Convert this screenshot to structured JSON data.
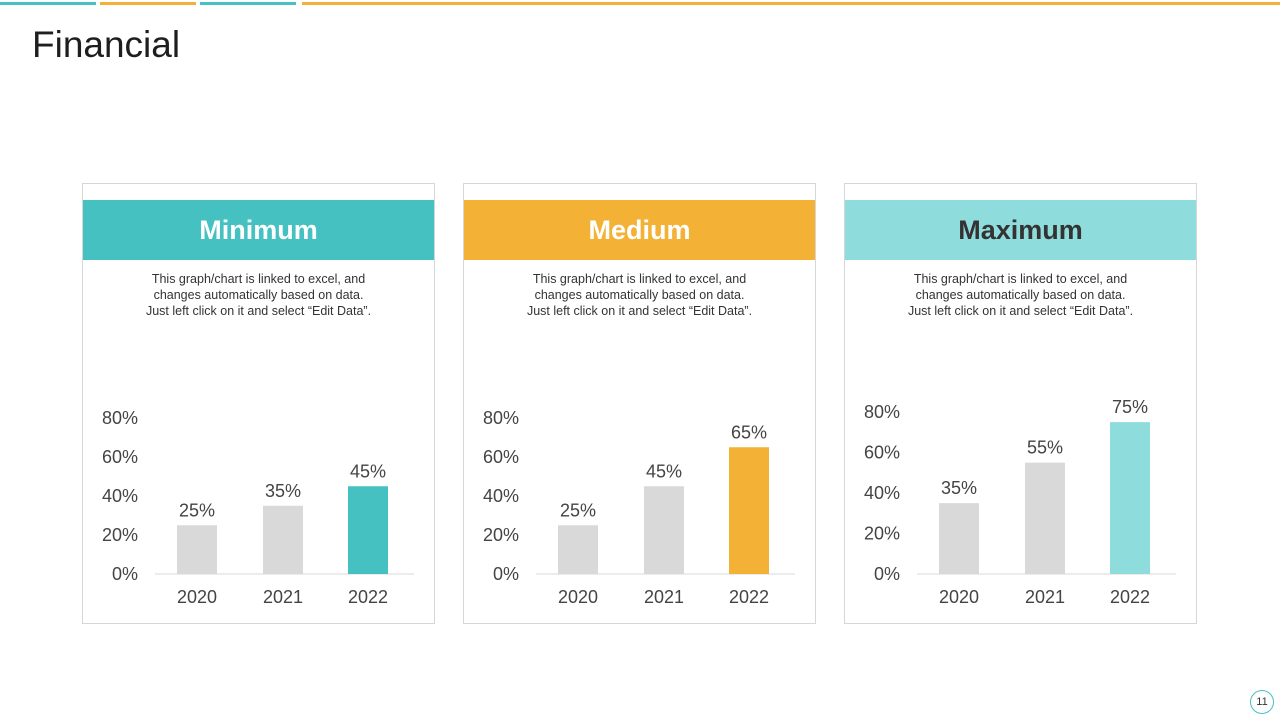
{
  "slide": {
    "title": "Financial",
    "page_number": "11",
    "accent_colors": [
      "#45c1c1",
      "#f3b136",
      "#8fdcdc"
    ]
  },
  "cards": [
    {
      "heading": "Minimum",
      "header_color": "#45c1c1",
      "heading_color": "#ffffff",
      "description": "This graph/chart is linked to excel, and changes automatically based on data. Just left click on it and select “Edit Data”."
    },
    {
      "heading": "Medium",
      "header_color": "#f3b136",
      "heading_color": "#ffffff",
      "description": "This graph/chart is linked to excel, and changes automatically based on data. Just left click on it and select “Edit Data”."
    },
    {
      "heading": "Maximum",
      "header_color": "#8fdcdc",
      "heading_color": "#333333",
      "description": "This graph/chart is linked to excel, and changes automatically based on data. Just left click on it and select “Edit Data”."
    }
  ],
  "chart_data": [
    {
      "type": "bar",
      "title": "",
      "categories": [
        "2020",
        "2021",
        "2022"
      ],
      "values": [
        25,
        35,
        45
      ],
      "value_labels": [
        "25%",
        "35%",
        "45%"
      ],
      "ylim": [
        0,
        80
      ],
      "yticks": [
        "0%",
        "20%",
        "40%",
        "60%",
        "80%"
      ],
      "bar_colors": [
        "#d9d9d9",
        "#d9d9d9",
        "#45c1c1"
      ],
      "grid": false,
      "legend": "none"
    },
    {
      "type": "bar",
      "title": "",
      "categories": [
        "2020",
        "2021",
        "2022"
      ],
      "values": [
        25,
        45,
        65
      ],
      "value_labels": [
        "25%",
        "45%",
        "65%"
      ],
      "ylim": [
        0,
        80
      ],
      "yticks": [
        "0%",
        "20%",
        "40%",
        "60%",
        "80%"
      ],
      "bar_colors": [
        "#d9d9d9",
        "#d9d9d9",
        "#f3b136"
      ],
      "grid": false,
      "legend": "none"
    },
    {
      "type": "bar",
      "title": "",
      "categories": [
        "2020",
        "2021",
        "2022"
      ],
      "values": [
        35,
        55,
        75
      ],
      "value_labels": [
        "35%",
        "55%",
        "75%"
      ],
      "ylim": [
        0,
        80
      ],
      "yticks": [
        "0%",
        "20%",
        "40%",
        "60%",
        "80%"
      ],
      "bar_colors": [
        "#d9d9d9",
        "#d9d9d9",
        "#8fdcdc"
      ],
      "grid": false,
      "legend": "none"
    }
  ]
}
